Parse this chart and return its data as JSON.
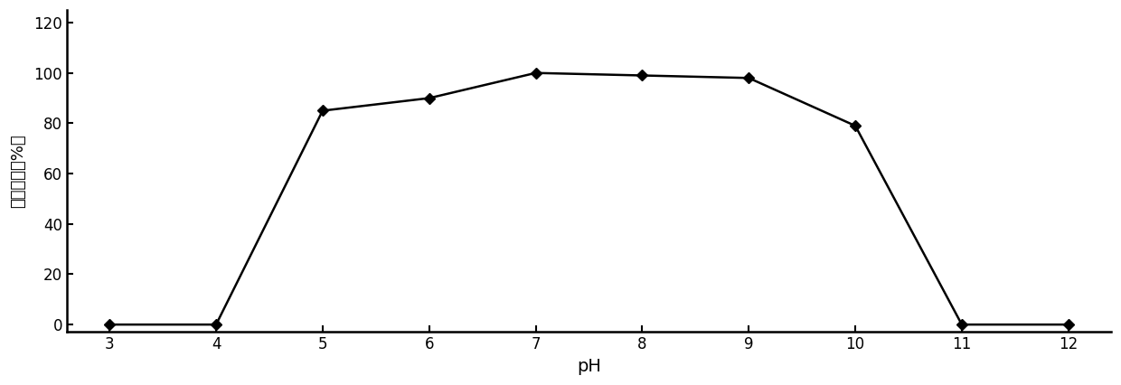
{
  "x": [
    3,
    4,
    5,
    6,
    7,
    8,
    9,
    10,
    11,
    12
  ],
  "y": [
    0,
    0,
    85,
    90,
    100,
    99,
    98,
    79,
    0,
    0
  ],
  "xlabel": "pH",
  "ylabel": "相对酶活（%）",
  "xlim": [
    2.6,
    12.4
  ],
  "ylim": [
    -3,
    125
  ],
  "xticks": [
    3,
    4,
    5,
    6,
    7,
    8,
    9,
    10,
    11,
    12
  ],
  "yticks": [
    0,
    20,
    40,
    60,
    80,
    100,
    120
  ],
  "line_color": "#000000",
  "marker": "D",
  "marker_size": 6,
  "linewidth": 1.8,
  "background_color": "#ffffff",
  "xlabel_fontsize": 14,
  "ylabel_fontsize": 13,
  "tick_fontsize": 12
}
